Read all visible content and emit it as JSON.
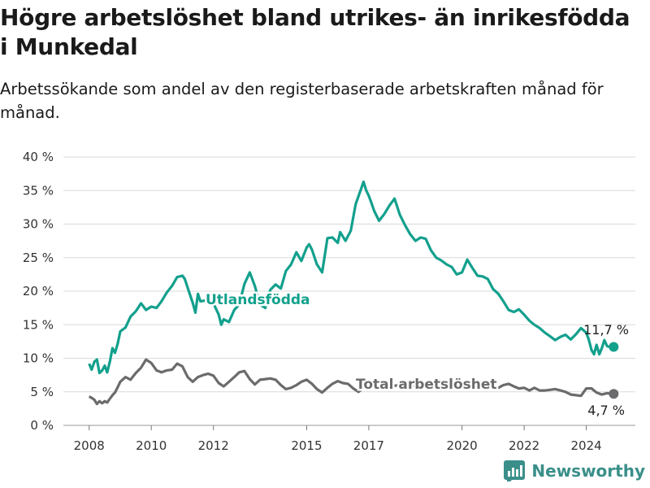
{
  "title": "Högre arbetslöshet bland utrikes- än inrikesfödda i Munkedal",
  "subtitle": "Arbetssökande som andel av den registerbaserade arbetskraften månad för månad.",
  "brand": "Newsworthy",
  "colors": {
    "utlandsfodda": "#13a08d",
    "total": "#6b6b6d",
    "grid": "#d9d9d9"
  },
  "chart_data": {
    "type": "line",
    "ylim": [
      0,
      40
    ],
    "y_ticks": [
      0,
      5,
      10,
      15,
      20,
      25,
      30,
      35,
      40
    ],
    "y_tick_labels": [
      "0 %",
      "5 %",
      "10 %",
      "15 %",
      "20 %",
      "25 %",
      "30 %",
      "35 %",
      "40 %"
    ],
    "x_ticks": [
      2008,
      2010,
      2012,
      2015,
      2017,
      2020,
      2022,
      2024
    ],
    "x_tick_labels": [
      "2008",
      "2010",
      "2012",
      "2015",
      "2017",
      "2020",
      "2022",
      "2024"
    ],
    "grid": true,
    "series": [
      {
        "name": "Utlandsfödda",
        "end_label": "11,7 %",
        "x": [
          2008.0,
          2008.08,
          2008.17,
          2008.25,
          2008.33,
          2008.42,
          2008.5,
          2008.58,
          2008.67,
          2008.75,
          2008.83,
          2008.92,
          2009.0,
          2009.17,
          2009.33,
          2009.5,
          2009.67,
          2009.83,
          2010.0,
          2010.17,
          2010.33,
          2010.5,
          2010.67,
          2010.83,
          2011.0,
          2011.08,
          2011.17,
          2011.33,
          2011.42,
          2011.5,
          2011.58,
          2011.75,
          2011.92,
          2012.0,
          2012.17,
          2012.25,
          2012.33,
          2012.5,
          2012.67,
          2012.83,
          2013.0,
          2013.17,
          2013.33,
          2013.5,
          2013.67,
          2013.83,
          2014.0,
          2014.17,
          2014.33,
          2014.5,
          2014.67,
          2014.83,
          2015.0,
          2015.08,
          2015.17,
          2015.33,
          2015.5,
          2015.67,
          2015.83,
          2016.0,
          2016.08,
          2016.25,
          2016.42,
          2016.58,
          2016.75,
          2016.83,
          2016.92,
          2017.0,
          2017.08,
          2017.17,
          2017.33,
          2017.5,
          2017.67,
          2017.83,
          2018.0,
          2018.17,
          2018.33,
          2018.5,
          2018.67,
          2018.83,
          2019.0,
          2019.17,
          2019.33,
          2019.5,
          2019.67,
          2019.83,
          2020.0,
          2020.17,
          2020.33,
          2020.5,
          2020.67,
          2020.83,
          2021.0,
          2021.17,
          2021.33,
          2021.5,
          2021.67,
          2021.83,
          2022.0,
          2022.17,
          2022.33,
          2022.5,
          2022.67,
          2022.83,
          2023.0,
          2023.17,
          2023.33,
          2023.5,
          2023.67,
          2023.83,
          2024.0,
          2024.08,
          2024.17,
          2024.25,
          2024.33,
          2024.42,
          2024.5,
          2024.58,
          2024.67,
          2024.75,
          2024.83
        ],
        "values": [
          9.2,
          8.3,
          9.5,
          9.8,
          7.8,
          8.2,
          8.9,
          7.9,
          9.6,
          11.5,
          10.8,
          12.2,
          14.0,
          14.6,
          16.2,
          17.0,
          18.2,
          17.2,
          17.7,
          17.5,
          18.5,
          19.8,
          20.8,
          22.1,
          22.3,
          21.8,
          20.5,
          18.3,
          16.8,
          19.6,
          18.5,
          18.6,
          19.4,
          18.2,
          16.5,
          15.0,
          15.8,
          15.4,
          17.2,
          18.0,
          21.1,
          22.8,
          20.8,
          18.0,
          17.5,
          20.2,
          21.0,
          20.4,
          23.0,
          24.0,
          25.8,
          24.5,
          26.5,
          27.0,
          26.2,
          24.0,
          22.8,
          27.9,
          28.0,
          27.2,
          28.8,
          27.5,
          29.0,
          33.0,
          35.2,
          36.3,
          35.0,
          34.2,
          33.2,
          32.0,
          30.5,
          31.5,
          32.8,
          33.8,
          31.4,
          29.8,
          28.5,
          27.5,
          28.0,
          27.8,
          26.1,
          25.0,
          24.6,
          24.0,
          23.6,
          22.5,
          22.8,
          24.7,
          23.5,
          22.3,
          22.2,
          21.8,
          20.3,
          19.6,
          18.5,
          17.2,
          16.9,
          17.3,
          16.5,
          15.6,
          15.0,
          14.5,
          13.8,
          13.3,
          12.7,
          13.2,
          13.5,
          12.8,
          13.6,
          14.5,
          13.8,
          12.8,
          11.2,
          10.6,
          12.0,
          10.6,
          11.5,
          12.7,
          11.8,
          11.7,
          11.7
        ]
      },
      {
        "name": "Total arbetslöshet",
        "end_label": "4,7 %",
        "x": [
          2008.0,
          2008.08,
          2008.17,
          2008.25,
          2008.33,
          2008.42,
          2008.5,
          2008.58,
          2008.67,
          2008.75,
          2008.83,
          2008.92,
          2009.0,
          2009.17,
          2009.33,
          2009.5,
          2009.67,
          2009.83,
          2010.0,
          2010.17,
          2010.33,
          2010.5,
          2010.67,
          2010.83,
          2011.0,
          2011.17,
          2011.33,
          2011.5,
          2011.67,
          2011.83,
          2012.0,
          2012.17,
          2012.33,
          2012.5,
          2012.67,
          2012.83,
          2013.0,
          2013.17,
          2013.33,
          2013.5,
          2013.67,
          2013.83,
          2014.0,
          2014.17,
          2014.33,
          2014.5,
          2014.67,
          2014.83,
          2015.0,
          2015.17,
          2015.33,
          2015.5,
          2015.67,
          2015.83,
          2016.0,
          2016.17,
          2016.33,
          2016.5,
          2016.67,
          2016.83,
          2017.0,
          2017.17,
          2017.33,
          2017.5,
          2017.67,
          2017.83,
          2018.0,
          2018.17,
          2018.33,
          2018.5,
          2018.67,
          2018.83,
          2019.0,
          2019.17,
          2019.33,
          2019.5,
          2019.67,
          2019.83,
          2020.0,
          2020.17,
          2020.33,
          2020.5,
          2020.67,
          2020.83,
          2021.0,
          2021.17,
          2021.33,
          2021.5,
          2021.67,
          2021.83,
          2022.0,
          2022.17,
          2022.33,
          2022.5,
          2022.67,
          2022.83,
          2023.0,
          2023.17,
          2023.33,
          2023.5,
          2023.67,
          2023.83,
          2024.0,
          2024.17,
          2024.33,
          2024.5,
          2024.67,
          2024.83
        ],
        "values": [
          4.3,
          4.1,
          3.8,
          3.2,
          3.6,
          3.3,
          3.6,
          3.4,
          4.0,
          4.5,
          4.9,
          5.7,
          6.5,
          7.2,
          6.8,
          7.8,
          8.6,
          9.8,
          9.3,
          8.2,
          7.9,
          8.2,
          8.3,
          9.2,
          8.8,
          7.2,
          6.5,
          7.2,
          7.5,
          7.7,
          7.4,
          6.3,
          5.8,
          6.5,
          7.2,
          7.9,
          8.1,
          6.9,
          6.1,
          6.8,
          6.9,
          7.0,
          6.8,
          6.0,
          5.4,
          5.6,
          6.0,
          6.5,
          6.8,
          6.2,
          5.4,
          4.9,
          5.6,
          6.2,
          6.6,
          6.3,
          6.2,
          5.5,
          5.0,
          5.6,
          6.5,
          6.4,
          6.2,
          6.6,
          6.3,
          5.9,
          6.0,
          6.0,
          5.7,
          6.1,
          6.2,
          6.2,
          6.0,
          6.1,
          6.4,
          6.0,
          6.3,
          5.9,
          5.8,
          6.3,
          6.2,
          5.9,
          6.0,
          6.1,
          5.9,
          5.6,
          6.0,
          6.2,
          5.8,
          5.5,
          5.6,
          5.2,
          5.6,
          5.2,
          5.2,
          5.3,
          5.4,
          5.2,
          5.0,
          4.6,
          4.5,
          4.4,
          5.5,
          5.5,
          4.9,
          4.6,
          4.8,
          4.7
        ]
      }
    ]
  }
}
